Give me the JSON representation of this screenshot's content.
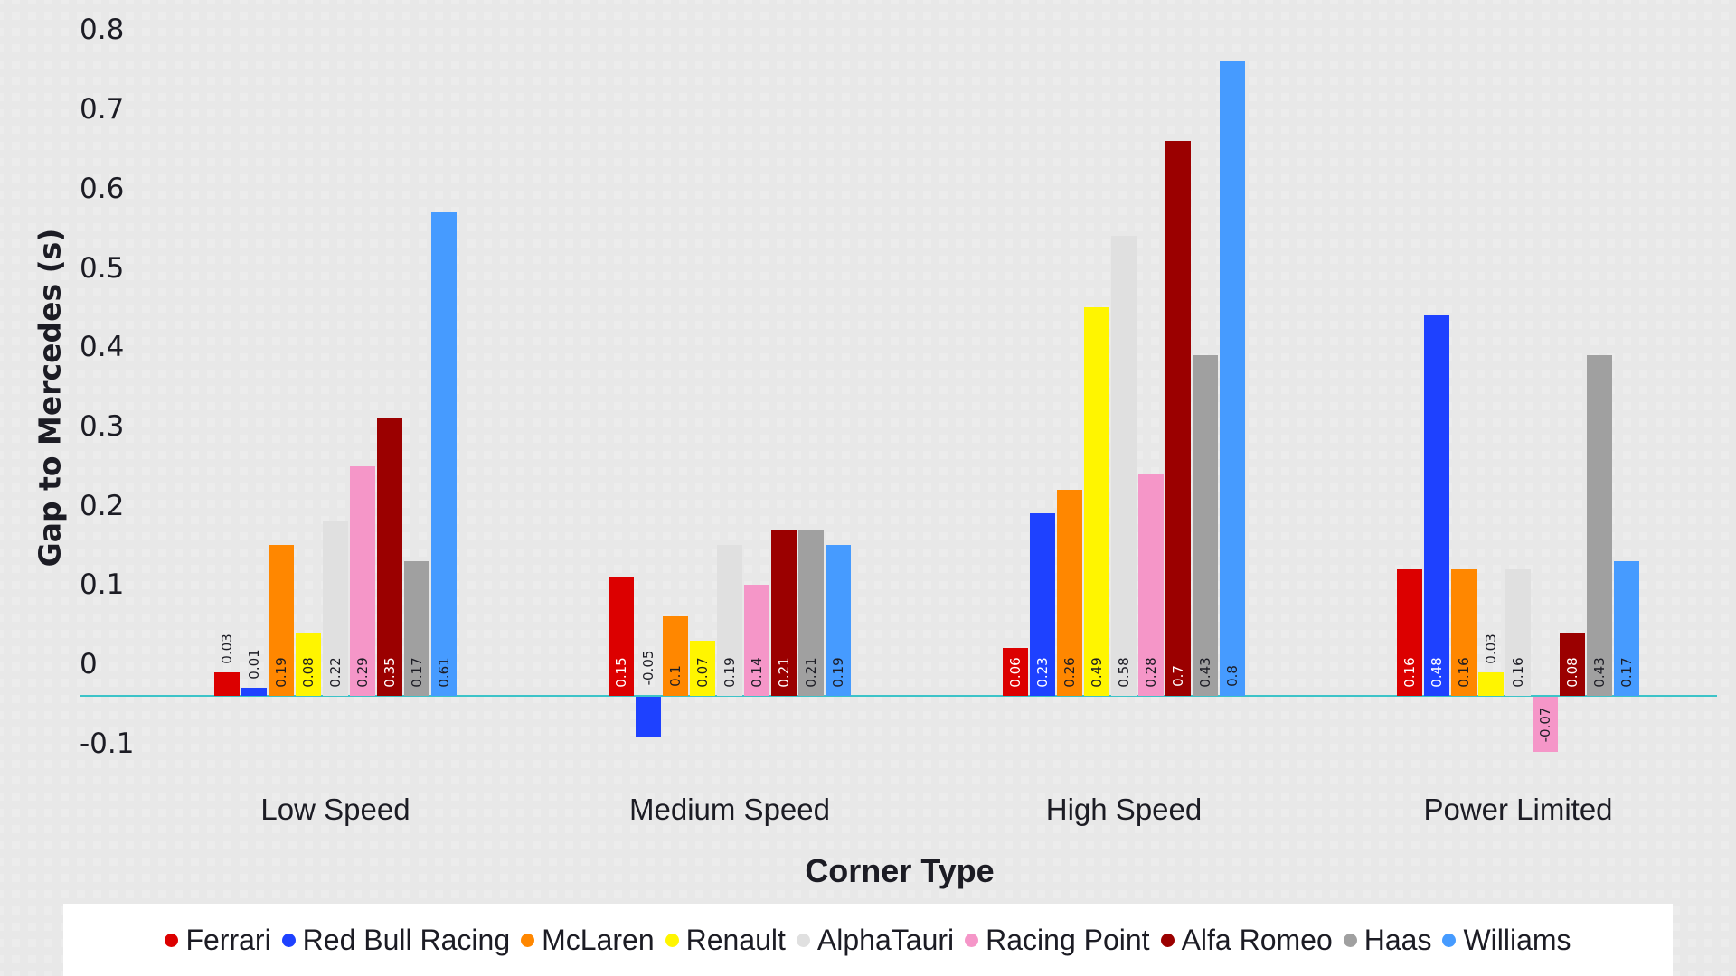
{
  "chart_data": {
    "type": "bar",
    "title": "",
    "xlabel": "Corner Type",
    "ylabel": "Gap to Mercedes (s)",
    "ylim": [
      -0.1,
      0.8
    ],
    "yticks": [
      "0.8",
      "0.7",
      "0.6",
      "0.5",
      "0.4",
      "0.3",
      "0.2",
      "0.1",
      "0",
      "-0.1"
    ],
    "grid": false,
    "legend_position": "bottom",
    "categories": [
      "Low Speed",
      "Medium Speed",
      "High Speed",
      "Power Limited"
    ],
    "series": [
      {
        "name": "Ferrari",
        "color": "#dc0000",
        "values": [
          0.03,
          0.15,
          0.06,
          0.16
        ]
      },
      {
        "name": "Red Bull Racing",
        "color": "#1e41ff",
        "values": [
          0.01,
          -0.05,
          0.23,
          0.48
        ]
      },
      {
        "name": "McLaren",
        "color": "#ff8700",
        "values": [
          0.19,
          0.1,
          0.26,
          0.16
        ]
      },
      {
        "name": "Renault",
        "color": "#fff500",
        "values": [
          0.08,
          0.07,
          0.49,
          0.03
        ]
      },
      {
        "name": "AlphaTauri",
        "color": "#e0e0e0",
        "values": [
          0.22,
          0.19,
          0.58,
          0.16
        ]
      },
      {
        "name": "Racing Point",
        "color": "#f596c8",
        "values": [
          0.29,
          0.14,
          0.28,
          -0.07
        ]
      },
      {
        "name": "Alfa Romeo",
        "color": "#9b0000",
        "values": [
          0.35,
          0.21,
          0.7,
          0.08
        ]
      },
      {
        "name": "Haas",
        "color": "#a0a0a0",
        "values": [
          0.17,
          0.21,
          0.43,
          0.43
        ]
      },
      {
        "name": "Williams",
        "color": "#469bff",
        "values": [
          0.61,
          0.19,
          0.8,
          0.17
        ]
      }
    ]
  },
  "colors": {
    "baseline": "#3cc3c8",
    "text": "#1c1c24"
  }
}
